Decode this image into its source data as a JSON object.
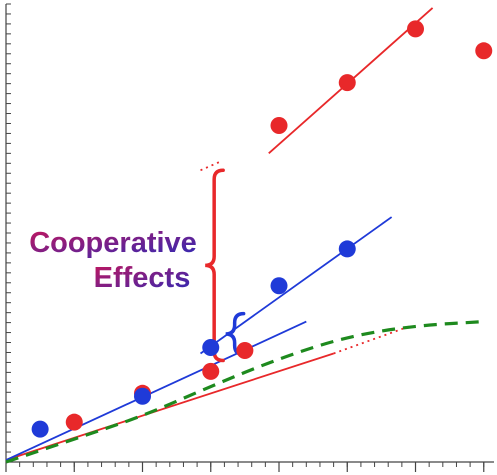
{
  "chart_data": {
    "type": "scatter",
    "title": "",
    "xlabel": "",
    "ylabel": "",
    "xlim": [
      0,
      14.3
    ],
    "ylim": [
      0,
      46
    ],
    "x_major_ticks": [
      0,
      2,
      4,
      6,
      8,
      10,
      12,
      14
    ],
    "x_minor_step": 0.4,
    "y_minor_step": 1,
    "grid": false,
    "legend": "none",
    "series": [
      {
        "color": "#e8282a",
        "marker": "circle",
        "points": [
          [
            2,
            4.0
          ],
          [
            4,
            6.9
          ],
          [
            6,
            9.1
          ],
          [
            7,
            11.2
          ],
          [
            8,
            33.8
          ],
          [
            10,
            38.1
          ],
          [
            12,
            43.5
          ],
          [
            14,
            41.3
          ]
        ]
      },
      {
        "color": "#1f3ad8",
        "marker": "circle",
        "points": [
          [
            1,
            3.3
          ],
          [
            4,
            6.6
          ],
          [
            6,
            11.5
          ],
          [
            8,
            17.7
          ],
          [
            10,
            21.4
          ]
        ]
      }
    ],
    "fit_lines": [
      {
        "color": "#e8282a",
        "style": "solid",
        "from": [
          0,
          0.2
        ],
        "to": [
          9.6,
          10.9
        ]
      },
      {
        "color": "#e8282a",
        "style": "dotted",
        "from": [
          9.6,
          10.9
        ],
        "to": [
          11.8,
          13.6
        ]
      },
      {
        "color": "#e8282a",
        "style": "solid",
        "from": [
          7.7,
          31.0
        ],
        "to": [
          12.5,
          45.6
        ]
      },
      {
        "color": "#e8282a",
        "style": "dotted",
        "from": [
          5.7,
          29.3
        ],
        "to": [
          6.3,
          30.2
        ]
      },
      {
        "color": "#1f3ad8",
        "style": "solid",
        "from": [
          0,
          0.2
        ],
        "to": [
          8.8,
          14.1
        ]
      },
      {
        "color": "#1f3ad8",
        "style": "solid",
        "from": [
          5.7,
          10.9
        ],
        "to": [
          11.3,
          24.6
        ]
      },
      {
        "color": "#1e8a1e",
        "style": "dashed",
        "points": [
          [
            0,
            0
          ],
          [
            2,
            2.3
          ],
          [
            4,
            4.6
          ],
          [
            6,
            7.6
          ],
          [
            8,
            10.4
          ],
          [
            10,
            12.6
          ],
          [
            12,
            13.7
          ],
          [
            14,
            14.1
          ]
        ]
      }
    ],
    "annotations": [
      {
        "text_lines": [
          "Cooperative",
          "Effects"
        ],
        "gradient_colors": [
          "#c4165c",
          "#2a2ab8"
        ]
      }
    ],
    "braces": [
      {
        "color": "#e8282a",
        "x": 6.1,
        "y_range": [
          10.2,
          29.3
        ]
      },
      {
        "color": "#1f3ad8",
        "x": 6.7,
        "y_range": [
          10.8,
          14.9
        ]
      }
    ]
  }
}
